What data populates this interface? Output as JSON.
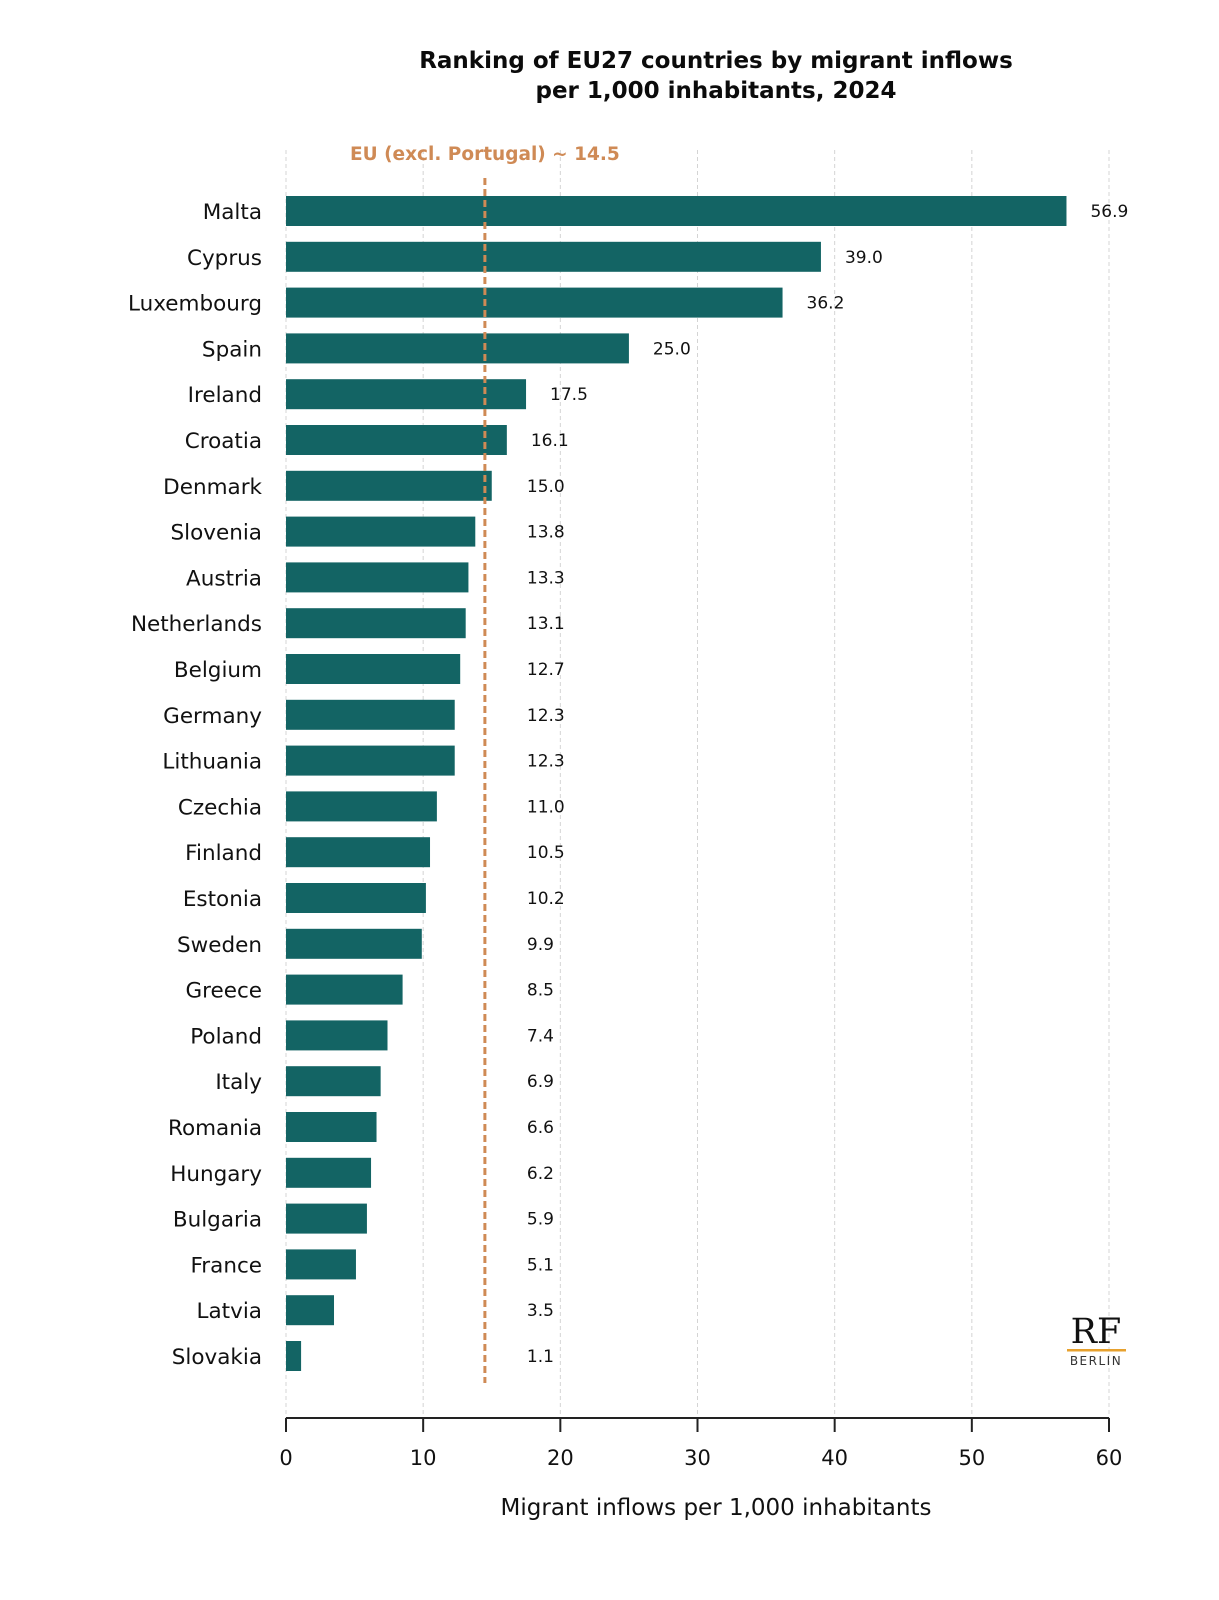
{
  "chart_data": {
    "type": "bar",
    "orientation": "horizontal",
    "title": "Ranking of EU27 countries by migrant inflows per 1,000 inhabitants, 2024",
    "title_lines": [
      "Ranking of EU27 countries by migrant inflows",
      "per 1,000 inhabitants, 2024"
    ],
    "xlabel": "Migrant inflows per 1,000 inhabitants",
    "ylabel": "",
    "xlim": [
      0,
      60
    ],
    "xticks": [
      0,
      10,
      20,
      30,
      40,
      50,
      60
    ],
    "grid": "vertical dashed",
    "categories": [
      "Malta",
      "Cyprus",
      "Luxembourg",
      "Spain",
      "Ireland",
      "Croatia",
      "Denmark",
      "Slovenia",
      "Austria",
      "Netherlands",
      "Belgium",
      "Germany",
      "Lithuania",
      "Czechia",
      "Finland",
      "Estonia",
      "Sweden",
      "Greece",
      "Poland",
      "Italy",
      "Romania",
      "Hungary",
      "Bulgaria",
      "France",
      "Latvia",
      "Slovakia"
    ],
    "values": [
      56.9,
      39.0,
      36.2,
      25.0,
      17.5,
      16.1,
      15.0,
      13.8,
      13.3,
      13.1,
      12.7,
      12.3,
      12.3,
      11.0,
      10.5,
      10.2,
      9.9,
      8.5,
      7.4,
      6.9,
      6.6,
      6.2,
      5.9,
      5.1,
      3.5,
      1.1
    ],
    "value_labels": [
      "56.9",
      "39.0",
      "36.2",
      "25.0",
      "17.5",
      "16.1",
      "15.0",
      "13.8",
      "13.3",
      "13.1",
      "12.7",
      "12.3",
      "12.3",
      "11.0",
      "10.5",
      "10.2",
      "9.9",
      "8.5",
      "7.4",
      "6.9",
      "6.6",
      "6.2",
      "5.9",
      "5.1",
      "3.5",
      "1.1"
    ],
    "reference_line": {
      "label": "EU (excl. Portugal) ~ 14.5",
      "value": 14.5
    },
    "colors": {
      "bar": "#136464",
      "reference": "#CF8A55",
      "grid": "#d4d4d4",
      "axis": "#222222",
      "logo_underline": "#E7A12E"
    }
  },
  "branding": {
    "logo_main": "RF",
    "logo_sub": "BERLIN"
  }
}
